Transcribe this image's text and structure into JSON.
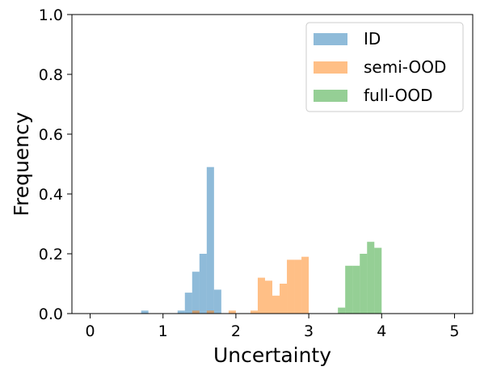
{
  "chart_data": {
    "type": "bar",
    "subtype": "histogram",
    "title": "",
    "xlabel": "Uncertainty",
    "ylabel": "Frequency",
    "xlim": [
      -0.25,
      5.25
    ],
    "ylim": [
      0,
      1.0
    ],
    "bin_width": 0.1,
    "xticks": [
      0,
      1,
      2,
      3,
      4,
      5
    ],
    "xtick_labels": [
      "0",
      "1",
      "2",
      "3",
      "4",
      "5"
    ],
    "yticks": [
      0.0,
      0.2,
      0.4,
      0.6,
      0.8,
      1.0
    ],
    "ytick_labels": [
      "0.0",
      "0.2",
      "0.4",
      "0.6",
      "0.8",
      "1.0"
    ],
    "grid": false,
    "legend_position": "top-right",
    "bar_opacity": 0.5,
    "series": [
      {
        "name": "ID",
        "color": "#1f77b4",
        "bins": [
          {
            "x": 0.7,
            "value": 0.01
          },
          {
            "x": 1.2,
            "value": 0.01
          },
          {
            "x": 1.3,
            "value": 0.07
          },
          {
            "x": 1.4,
            "value": 0.14
          },
          {
            "x": 1.5,
            "value": 0.2
          },
          {
            "x": 1.6,
            "value": 0.49
          },
          {
            "x": 1.7,
            "value": 0.08
          }
        ]
      },
      {
        "name": "semi-OOD",
        "color": "#ff7f0e",
        "bins": [
          {
            "x": 1.4,
            "value": 0.01
          },
          {
            "x": 1.6,
            "value": 0.01
          },
          {
            "x": 1.9,
            "value": 0.01
          },
          {
            "x": 2.2,
            "value": 0.01
          },
          {
            "x": 2.3,
            "value": 0.12
          },
          {
            "x": 2.4,
            "value": 0.11
          },
          {
            "x": 2.5,
            "value": 0.06
          },
          {
            "x": 2.6,
            "value": 0.1
          },
          {
            "x": 2.7,
            "value": 0.18
          },
          {
            "x": 2.8,
            "value": 0.18
          },
          {
            "x": 2.9,
            "value": 0.19
          }
        ]
      },
      {
        "name": "full-OOD",
        "color": "#2ca02c",
        "bins": [
          {
            "x": 3.4,
            "value": 0.02
          },
          {
            "x": 3.5,
            "value": 0.16
          },
          {
            "x": 3.6,
            "value": 0.16
          },
          {
            "x": 3.7,
            "value": 0.2
          },
          {
            "x": 3.8,
            "value": 0.24
          },
          {
            "x": 3.9,
            "value": 0.22
          }
        ]
      }
    ]
  }
}
